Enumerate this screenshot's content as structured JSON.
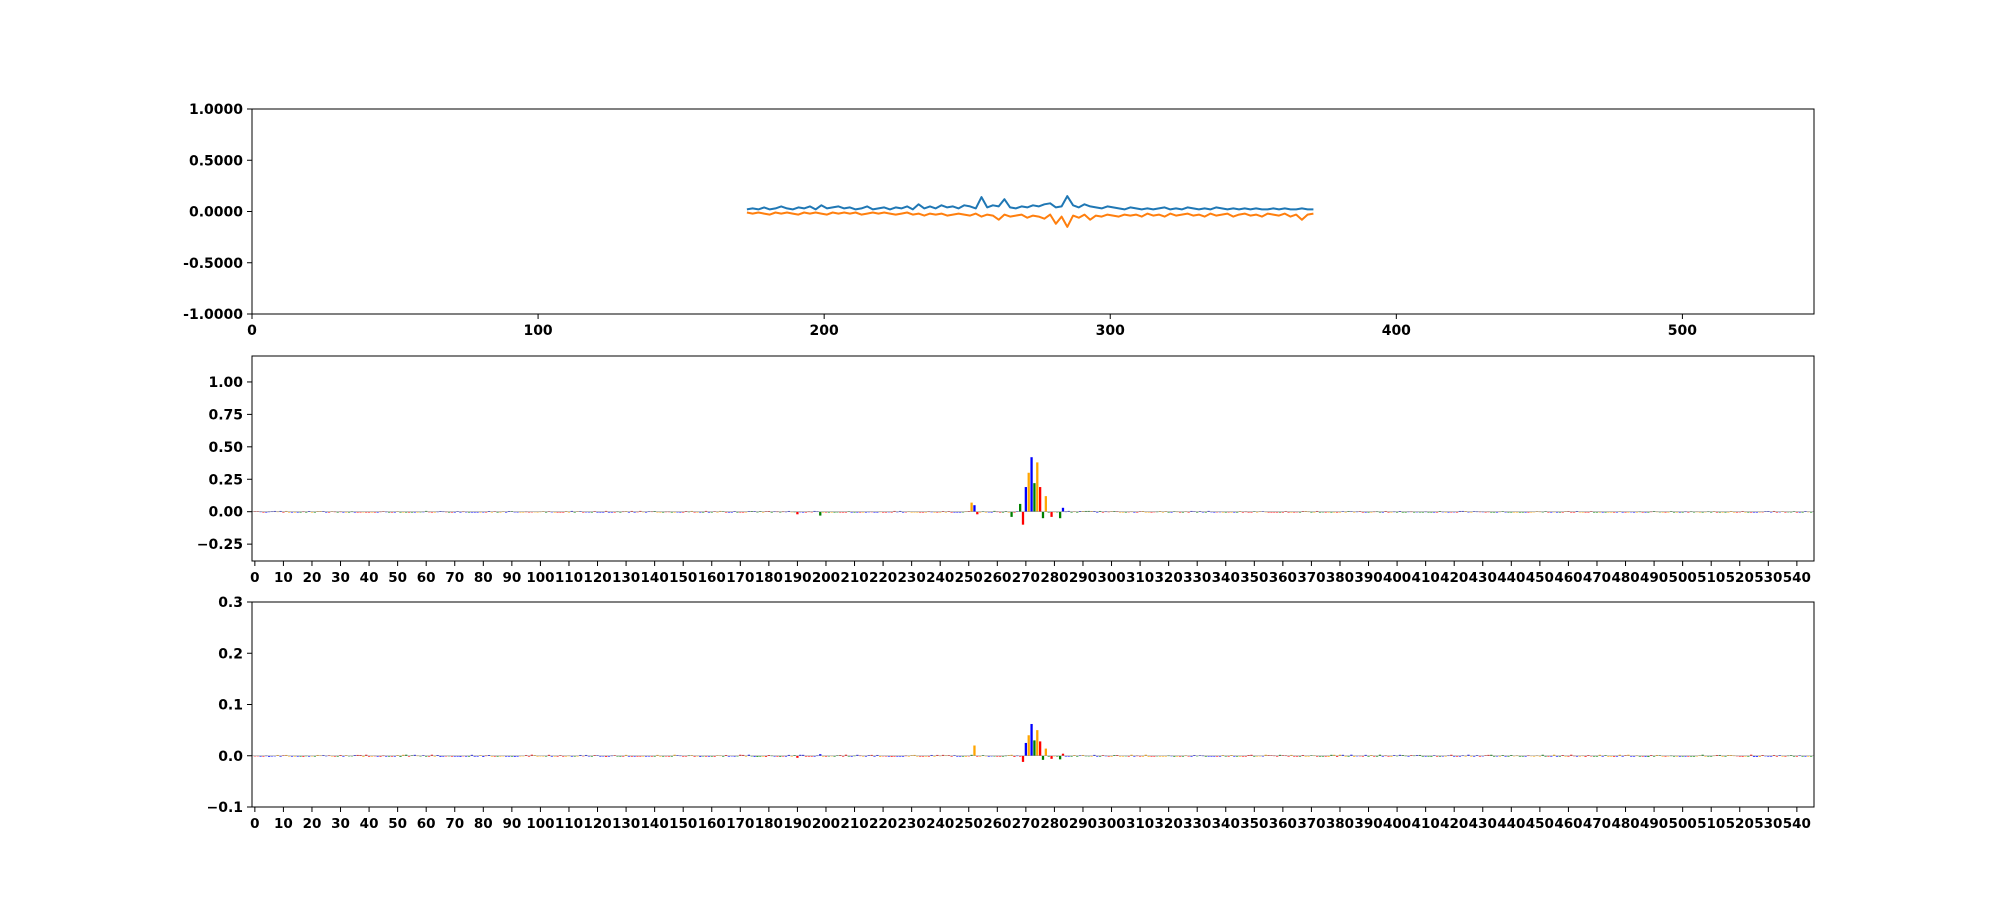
{
  "colors": {
    "blue_series": "#1f77b4",
    "orange_series": "#ff7f0e",
    "base_A": "#008000",
    "base_C": "#0000ff",
    "base_G": "#ffa500",
    "base_T": "#ff0000",
    "axis": "#000000",
    "background": "#ffffff"
  },
  "chart_data": [
    {
      "type": "line",
      "title": "",
      "xlabel": "",
      "ylabel": "",
      "xlim": [
        0,
        546
      ],
      "ylim": [
        -1.0,
        1.0
      ],
      "x_ticks": [
        0,
        100,
        200,
        300,
        400,
        500
      ],
      "y_ticks": [
        -1.0,
        -0.5,
        0.0,
        0.5,
        1.0
      ],
      "y_tick_labels": [
        "-1.0000",
        "-0.5000",
        "0.0000",
        "0.5000",
        "1.0000"
      ],
      "x_range_of_series": [
        173,
        372
      ],
      "series": [
        {
          "color_key": "blue_series",
          "x_start": 173,
          "x_step": 2,
          "values": [
            0.02,
            0.03,
            0.02,
            0.04,
            0.02,
            0.03,
            0.05,
            0.03,
            0.02,
            0.04,
            0.03,
            0.05,
            0.02,
            0.06,
            0.03,
            0.04,
            0.05,
            0.03,
            0.04,
            0.02,
            0.03,
            0.05,
            0.02,
            0.03,
            0.04,
            0.02,
            0.04,
            0.03,
            0.05,
            0.02,
            0.07,
            0.03,
            0.05,
            0.03,
            0.06,
            0.04,
            0.05,
            0.03,
            0.06,
            0.05,
            0.03,
            0.14,
            0.04,
            0.06,
            0.05,
            0.12,
            0.04,
            0.03,
            0.05,
            0.04,
            0.06,
            0.05,
            0.07,
            0.08,
            0.04,
            0.05,
            0.15,
            0.06,
            0.04,
            0.07,
            0.05,
            0.04,
            0.03,
            0.05,
            0.04,
            0.03,
            0.02,
            0.04,
            0.03,
            0.02,
            0.03,
            0.02,
            0.03,
            0.04,
            0.02,
            0.03,
            0.02,
            0.04,
            0.03,
            0.02,
            0.03,
            0.02,
            0.04,
            0.03,
            0.02,
            0.03,
            0.02,
            0.03,
            0.02,
            0.03,
            0.02,
            0.02,
            0.03,
            0.02,
            0.03,
            0.02,
            0.02,
            0.03,
            0.02,
            0.02
          ]
        },
        {
          "color_key": "orange_series",
          "x_start": 173,
          "x_step": 2,
          "values": [
            -0.01,
            -0.02,
            -0.01,
            -0.02,
            -0.03,
            -0.01,
            -0.02,
            -0.01,
            -0.02,
            -0.03,
            -0.01,
            -0.02,
            -0.01,
            -0.02,
            -0.03,
            -0.01,
            -0.02,
            -0.01,
            -0.02,
            -0.01,
            -0.03,
            -0.02,
            -0.01,
            -0.02,
            -0.01,
            -0.02,
            -0.03,
            -0.02,
            -0.01,
            -0.03,
            -0.02,
            -0.04,
            -0.02,
            -0.03,
            -0.02,
            -0.04,
            -0.03,
            -0.02,
            -0.03,
            -0.04,
            -0.02,
            -0.05,
            -0.03,
            -0.04,
            -0.08,
            -0.03,
            -0.05,
            -0.04,
            -0.03,
            -0.06,
            -0.04,
            -0.05,
            -0.07,
            -0.03,
            -0.12,
            -0.05,
            -0.15,
            -0.04,
            -0.06,
            -0.03,
            -0.08,
            -0.04,
            -0.05,
            -0.03,
            -0.04,
            -0.05,
            -0.03,
            -0.04,
            -0.03,
            -0.05,
            -0.02,
            -0.04,
            -0.03,
            -0.05,
            -0.02,
            -0.04,
            -0.03,
            -0.02,
            -0.04,
            -0.03,
            -0.05,
            -0.02,
            -0.04,
            -0.03,
            -0.02,
            -0.05,
            -0.03,
            -0.02,
            -0.04,
            -0.03,
            -0.05,
            -0.02,
            -0.03,
            -0.04,
            -0.02,
            -0.05,
            -0.03,
            -0.08,
            -0.03,
            -0.02
          ]
        }
      ]
    },
    {
      "type": "bar",
      "title": "",
      "xlabel": "",
      "ylabel": "",
      "xlim": [
        -1,
        546
      ],
      "ylim": [
        -0.38,
        1.2
      ],
      "x_ticks_step": 10,
      "x_ticks": [
        0,
        10,
        20,
        30,
        40,
        50,
        60,
        70,
        80,
        90,
        100,
        110,
        120,
        130,
        140,
        150,
        160,
        170,
        180,
        190,
        200,
        210,
        220,
        230,
        240,
        250,
        260,
        270,
        280,
        290,
        300,
        310,
        320,
        330,
        340,
        350,
        360,
        370,
        380,
        390,
        400,
        410,
        420,
        430,
        440,
        450,
        460,
        470,
        480,
        490,
        500,
        510,
        520,
        530,
        540
      ],
      "y_ticks": [
        -0.25,
        0.0,
        0.25,
        0.5,
        0.75,
        1.0
      ],
      "y_tick_labels": [
        "−0.25",
        "0.00",
        "0.25",
        "0.50",
        "0.75",
        "1.00"
      ],
      "baseline_noise": 0.006,
      "peaks": [
        {
          "x": 251,
          "value": 0.07,
          "base": "G"
        },
        {
          "x": 252,
          "value": 0.05,
          "base": "C"
        },
        {
          "x": 253,
          "value": -0.02,
          "base": "T"
        },
        {
          "x": 265,
          "value": -0.04,
          "base": "A"
        },
        {
          "x": 268,
          "value": 0.06,
          "base": "A"
        },
        {
          "x": 269,
          "value": -0.1,
          "base": "T"
        },
        {
          "x": 270,
          "value": 0.19,
          "base": "C"
        },
        {
          "x": 271,
          "value": 0.3,
          "base": "G"
        },
        {
          "x": 272,
          "value": 0.42,
          "base": "C"
        },
        {
          "x": 273,
          "value": 0.22,
          "base": "A"
        },
        {
          "x": 274,
          "value": 0.38,
          "base": "G"
        },
        {
          "x": 275,
          "value": 0.19,
          "base": "T"
        },
        {
          "x": 276,
          "value": -0.05,
          "base": "A"
        },
        {
          "x": 277,
          "value": 0.12,
          "base": "G"
        },
        {
          "x": 279,
          "value": -0.04,
          "base": "T"
        },
        {
          "x": 282,
          "value": -0.05,
          "base": "A"
        },
        {
          "x": 283,
          "value": 0.03,
          "base": "C"
        },
        {
          "x": 198,
          "value": -0.03,
          "base": "A"
        },
        {
          "x": 190,
          "value": -0.02,
          "base": "T"
        }
      ]
    },
    {
      "type": "bar",
      "title": "",
      "xlabel": "",
      "ylabel": "",
      "xlim": [
        -1,
        546
      ],
      "ylim": [
        -0.1,
        0.3
      ],
      "x_ticks_step": 10,
      "x_ticks": [
        0,
        10,
        20,
        30,
        40,
        50,
        60,
        70,
        80,
        90,
        100,
        110,
        120,
        130,
        140,
        150,
        160,
        170,
        180,
        190,
        200,
        210,
        220,
        230,
        240,
        250,
        260,
        270,
        280,
        290,
        300,
        310,
        320,
        330,
        340,
        350,
        360,
        370,
        380,
        390,
        400,
        410,
        420,
        430,
        440,
        450,
        460,
        470,
        480,
        490,
        500,
        510,
        520,
        530,
        540
      ],
      "y_ticks": [
        -0.1,
        0.0,
        0.1,
        0.2,
        0.3
      ],
      "y_tick_labels": [
        "−0.1",
        "0.0",
        "0.1",
        "0.2",
        "0.3"
      ],
      "baseline_noise": 0.002,
      "peaks": [
        {
          "x": 252,
          "value": 0.02,
          "base": "G"
        },
        {
          "x": 269,
          "value": -0.012,
          "base": "T"
        },
        {
          "x": 270,
          "value": 0.025,
          "base": "C"
        },
        {
          "x": 271,
          "value": 0.04,
          "base": "G"
        },
        {
          "x": 272,
          "value": 0.062,
          "base": "C"
        },
        {
          "x": 273,
          "value": 0.03,
          "base": "A"
        },
        {
          "x": 274,
          "value": 0.05,
          "base": "G"
        },
        {
          "x": 275,
          "value": 0.028,
          "base": "T"
        },
        {
          "x": 276,
          "value": -0.008,
          "base": "A"
        },
        {
          "x": 277,
          "value": 0.014,
          "base": "G"
        },
        {
          "x": 279,
          "value": -0.006,
          "base": "T"
        },
        {
          "x": 282,
          "value": -0.007,
          "base": "A"
        },
        {
          "x": 283,
          "value": 0.004,
          "base": "T"
        },
        {
          "x": 190,
          "value": -0.004,
          "base": "T"
        },
        {
          "x": 198,
          "value": 0.003,
          "base": "C"
        }
      ]
    }
  ]
}
